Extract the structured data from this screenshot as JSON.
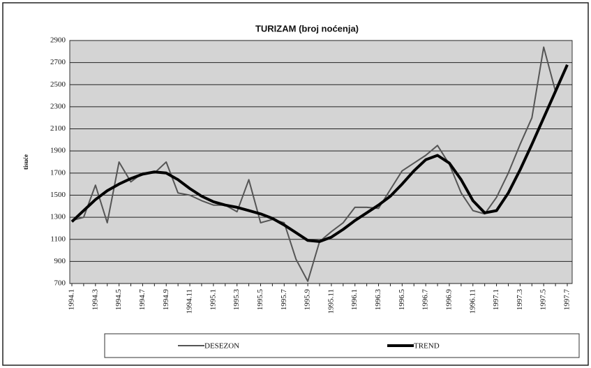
{
  "chart_data": {
    "type": "line",
    "title": "TURIZAM  (broj noćenja)",
    "y_label": "tisuće",
    "categories": [
      "1994.1",
      null,
      "1994.3",
      null,
      "1994.5",
      null,
      "1994.7",
      null,
      "1994.9",
      null,
      "1994.11",
      null,
      "1995.1",
      null,
      "1995.3",
      null,
      "1995.5",
      null,
      "1995.7",
      null,
      "1995.9",
      null,
      "1995.11",
      null,
      "1996.1",
      null,
      "1996.3",
      null,
      "1996.5",
      null,
      "1996.7",
      null,
      "1996.9",
      null,
      "1996.11",
      null,
      "1997.1",
      null,
      "1997.3",
      null,
      "1997.5",
      null,
      "1997.7"
    ],
    "series": [
      {
        "name": "DESEZON",
        "color": "#555555",
        "values": [
          1270,
          1300,
          1590,
          1250,
          1800,
          1620,
          1700,
          1700,
          1800,
          1520,
          1500,
          1450,
          1410,
          1410,
          1350,
          1640,
          1250,
          1280,
          1250,
          920,
          720,
          1080,
          1170,
          1250,
          1390,
          1390,
          1380,
          1550,
          1720,
          1790,
          1860,
          1950,
          1780,
          1520,
          1360,
          1330,
          1480,
          1700,
          1960,
          2200,
          2840,
          2440,
          2670
        ]
      },
      {
        "name": "TREND",
        "color": "#000000",
        "values": [
          1260,
          1360,
          1460,
          1540,
          1600,
          1650,
          1690,
          1710,
          1700,
          1640,
          1560,
          1490,
          1440,
          1410,
          1390,
          1360,
          1330,
          1290,
          1230,
          1160,
          1090,
          1080,
          1120,
          1190,
          1270,
          1340,
          1410,
          1490,
          1600,
          1720,
          1820,
          1860,
          1790,
          1640,
          1450,
          1340,
          1360,
          1520,
          1730,
          1960,
          2200,
          2440,
          2680
        ]
      }
    ],
    "ylim": [
      700,
      2900
    ],
    "yticks": [
      700,
      900,
      1100,
      1300,
      1500,
      1700,
      1900,
      2100,
      2300,
      2500,
      2700,
      2900
    ],
    "grid": true,
    "legend": "bottom"
  }
}
